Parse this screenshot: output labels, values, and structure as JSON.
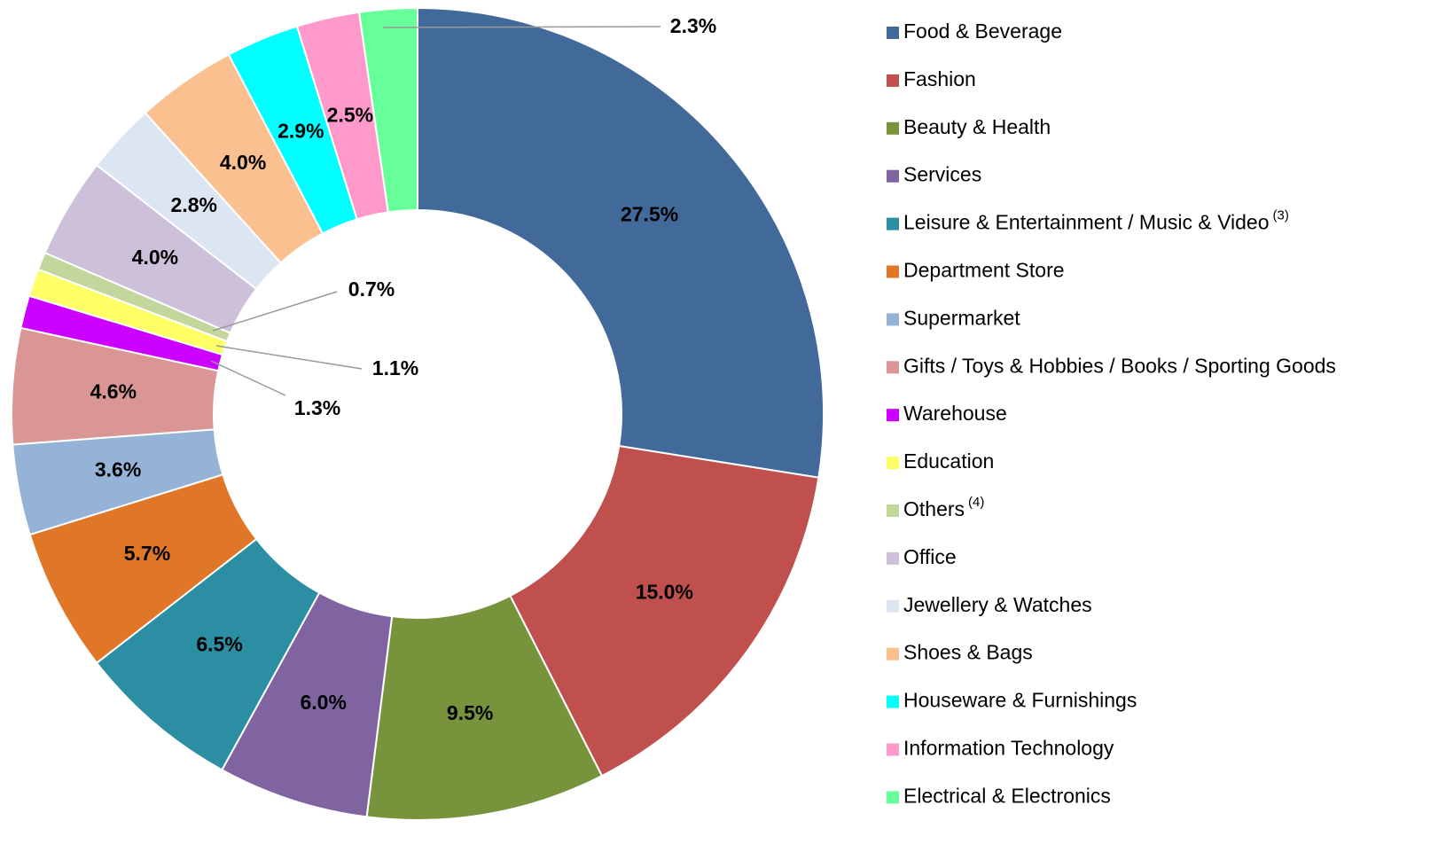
{
  "chart_data": {
    "type": "donut",
    "categories": [
      "Food & Beverage",
      "Fashion",
      "Beauty & Health",
      "Services",
      "Leisure & Entertainment / Music & Video",
      "Department Store",
      "Supermarket",
      "Gifts / Toys & Hobbies / Books / Sporting Goods",
      "Warehouse",
      "Education",
      "Others",
      "Office",
      "Jewellery & Watches",
      "Shoes & Bags",
      "Houseware & Furnishings",
      "Information Technology",
      "Electrical & Electronics"
    ],
    "footnote_marks": {
      "4": "(3)",
      "10": "(4)"
    },
    "values": [
      27.5,
      15.0,
      9.5,
      6.0,
      6.5,
      5.7,
      3.6,
      4.6,
      1.3,
      1.1,
      0.7,
      4.0,
      2.8,
      4.0,
      2.9,
      2.5,
      2.3
    ],
    "value_labels": [
      "27.5%",
      "15.0%",
      "9.5%",
      "6.0%",
      "6.5%",
      "5.7%",
      "3.6%",
      "4.6%",
      "1.3%",
      "1.1%",
      "0.7%",
      "4.0%",
      "2.8%",
      "4.0%",
      "2.9%",
      "2.5%",
      "2.3%"
    ],
    "colors": [
      "#41699a",
      "#c0504d",
      "#77933c",
      "#8064a2",
      "#2c8ea3",
      "#e07628",
      "#95b3d7",
      "#d99694",
      "#cc00ff",
      "#ffff66",
      "#c3d69b",
      "#ccc0da",
      "#dce6f2",
      "#fac090",
      "#00ffff",
      "#ff99cc",
      "#66ff99"
    ],
    "legend": "right"
  }
}
